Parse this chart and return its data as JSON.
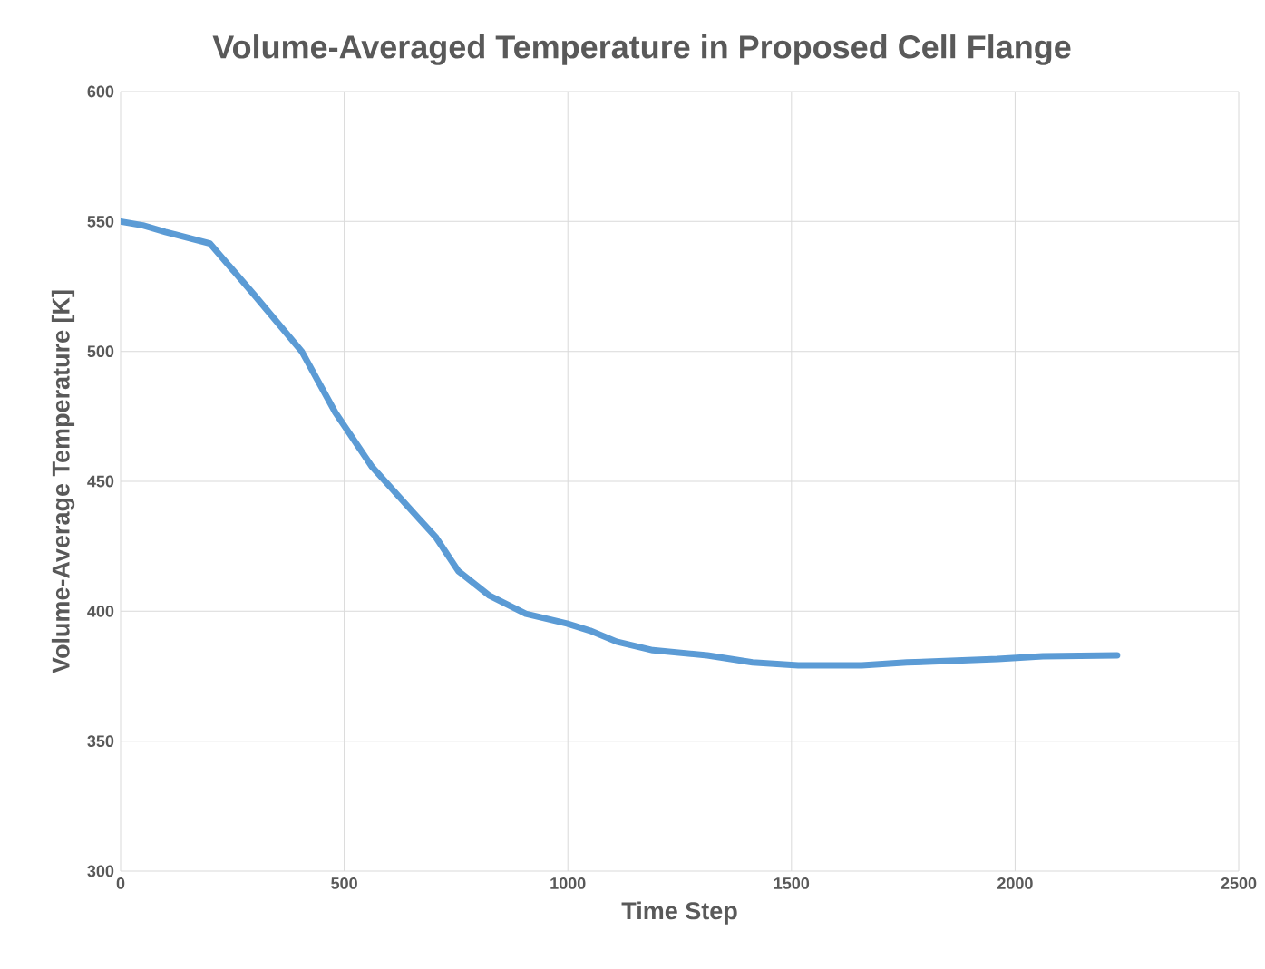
{
  "chart_data": {
    "type": "line",
    "title": "Volume-Averaged Temperature in Proposed Cell Flange",
    "xlabel": "Time Step",
    "ylabel": "Volume-Average Temperature [K]",
    "x": [
      0,
      50,
      100,
      200,
      298,
      405,
      480,
      562,
      663,
      704,
      755,
      825,
      906,
      998,
      1050,
      1109,
      1190,
      1312,
      1413,
      1515,
      1657,
      1758,
      1961,
      2062,
      2228
    ],
    "series": [
      {
        "color": "#5b9bd5",
        "values": [
          550,
          548.5,
          546,
          541.5,
          521.9,
          500,
          476.5,
          455.6,
          436.4,
          428.7,
          415.5,
          406,
          399,
          395.3,
          392.5,
          388.3,
          385,
          383,
          380.3,
          379.2,
          379.2,
          380.3,
          381.6,
          382.7,
          383
        ]
      }
    ],
    "xlim": [
      0,
      2500
    ],
    "xticks": [
      0,
      500,
      1000,
      1500,
      2000,
      2500
    ],
    "ylim": [
      300,
      600
    ],
    "yticks": [
      300,
      350,
      400,
      450,
      500,
      550,
      600
    ],
    "grid": true,
    "marker": "none",
    "line_style": "solid"
  }
}
